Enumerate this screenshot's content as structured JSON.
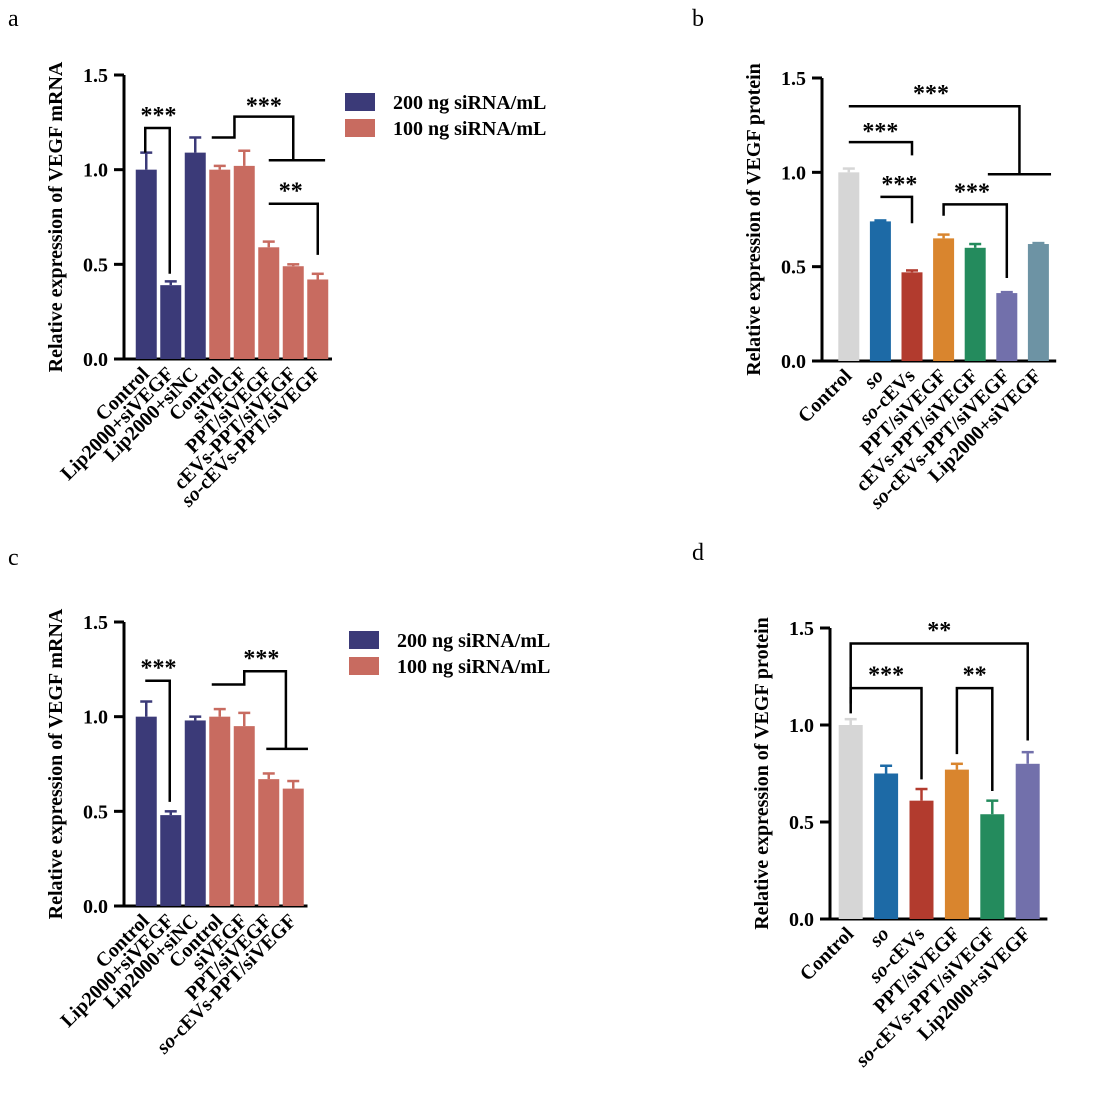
{
  "figure": {
    "panels": [
      {
        "letter": "a",
        "legend_position": "top-right",
        "error_bars": true
      },
      {
        "letter": "b",
        "legend_position": "none",
        "error_bars": true
      },
      {
        "letter": "c",
        "legend_position": "top-right",
        "error_bars": true
      },
      {
        "letter": "d",
        "legend_position": "none",
        "error_bars": true
      }
    ]
  },
  "chart_data": [
    {
      "type": "bar",
      "ylabel": "Relative expression of VEGF mRNA",
      "ylim": [
        0,
        1.5
      ],
      "yticks": [
        "0.0",
        "0.5",
        "1.0",
        "1.5"
      ],
      "grid": false,
      "categories": [
        "Control",
        "Lip2000+siVEGF",
        "Lip2000+siNC",
        "Control",
        "siVEGF",
        "PPT/siVEGF",
        "cEVs-PPT/siVEGF",
        "so-cEVs-PPT/siVEGF"
      ],
      "values": [
        1.0,
        0.39,
        1.09,
        1.0,
        1.02,
        0.59,
        0.49,
        0.42
      ],
      "errors": [
        0.09,
        0.02,
        0.08,
        0.02,
        0.08,
        0.03,
        0.01,
        0.03
      ],
      "colors": [
        "#3b3a78",
        "#3b3a78",
        "#3b3a78",
        "#c86b60",
        "#c86b60",
        "#c86b60",
        "#c86b60",
        "#c86b60"
      ],
      "legend": [
        {
          "label": "200 ng siRNA/mL",
          "color": "#3b3a78"
        },
        {
          "label": "100 ng siRNA/mL",
          "color": "#c86b60"
        }
      ],
      "annotations": [
        "***",
        "***",
        "**"
      ]
    },
    {
      "type": "bar",
      "ylabel": "Relative expression of VEGF protein",
      "ylim": [
        0,
        1.5
      ],
      "yticks": [
        "0.0",
        "0.5",
        "1.0",
        "1.5"
      ],
      "grid": false,
      "categories": [
        "Control",
        "so",
        "so-cEVs",
        "PPT/siVEGF",
        "cEVs-PPT/siVEGF",
        "so-cEVs-PPT/siVEGF",
        "Lip2000+siVEGF"
      ],
      "values": [
        1.0,
        0.74,
        0.47,
        0.65,
        0.6,
        0.36,
        0.62
      ],
      "errors": [
        0.02,
        0.005,
        0.01,
        0.02,
        0.02,
        0.005,
        0.005
      ],
      "colors": [
        "#d6d6d6",
        "#1d6aa6",
        "#b23b2e",
        "#d9852e",
        "#248b5d",
        "#7270ab",
        "#6d93a4"
      ],
      "annotations": [
        "***",
        "***",
        "***",
        "***"
      ]
    },
    {
      "type": "bar",
      "ylabel": "Relative expression of VEGF mRNA",
      "ylim": [
        0,
        1.5
      ],
      "yticks": [
        "0.0",
        "0.5",
        "1.0",
        "1.5"
      ],
      "grid": false,
      "categories": [
        "Control",
        "Lip2000+siVEGF",
        "Lip2000+siNC",
        "Control",
        "siVEGF",
        "PPT/siVEGF",
        "so-cEVs-PPT/siVEGF"
      ],
      "values": [
        1.0,
        0.48,
        0.98,
        1.0,
        0.95,
        0.67,
        0.62
      ],
      "errors": [
        0.08,
        0.02,
        0.02,
        0.04,
        0.07,
        0.03,
        0.04
      ],
      "colors": [
        "#3b3a78",
        "#3b3a78",
        "#3b3a78",
        "#c86b60",
        "#c86b60",
        "#c86b60",
        "#c86b60"
      ],
      "legend": [
        {
          "label": "200 ng siRNA/mL",
          "color": "#3b3a78"
        },
        {
          "label": "100 ng siRNA/mL",
          "color": "#c86b60"
        }
      ],
      "annotations": [
        "***",
        "***"
      ]
    },
    {
      "type": "bar",
      "ylabel": "Relative expression of VEGF protein",
      "ylim": [
        0,
        1.5
      ],
      "yticks": [
        "0.0",
        "0.5",
        "1.0",
        "1.5"
      ],
      "grid": false,
      "categories": [
        "Control",
        "so",
        "so-cEVs",
        "PPT/siVEGF",
        "so-cEVs-PPT/siVEGF",
        "Lip2000+siVEGF"
      ],
      "values": [
        1.0,
        0.75,
        0.61,
        0.77,
        0.54,
        0.8
      ],
      "errors": [
        0.03,
        0.04,
        0.06,
        0.03,
        0.07,
        0.06
      ],
      "colors": [
        "#d6d6d6",
        "#1d6aa6",
        "#b23b2e",
        "#d9852e",
        "#248b5d",
        "#7270ab"
      ],
      "annotations": [
        "**",
        "***",
        "**"
      ]
    }
  ]
}
